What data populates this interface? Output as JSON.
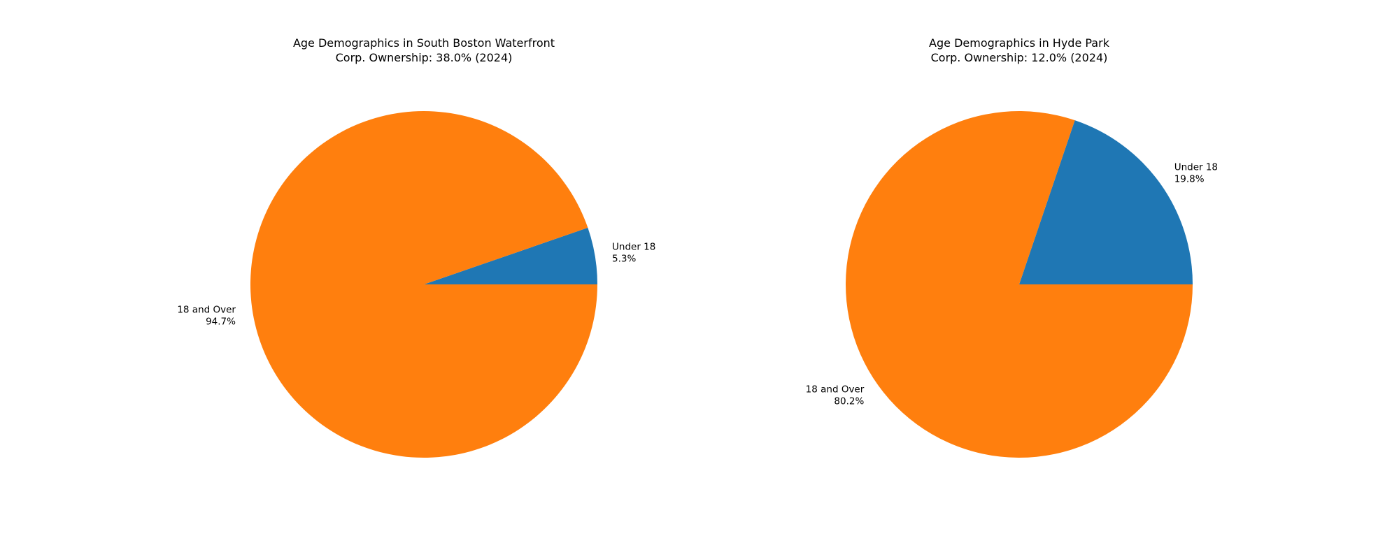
{
  "chart_data": [
    {
      "type": "pie",
      "title_lines": [
        "Age Demographics in South Boston Waterfront",
        "Corp. Ownership: 38.0% (2024)"
      ],
      "labels": [
        "Under 18",
        "18 and Over"
      ],
      "values": [
        5.3,
        94.7
      ],
      "value_labels": [
        "5.3%",
        "94.7%"
      ],
      "colors": [
        "#1f77b4",
        "#ff7f0e"
      ],
      "start_angle_deg": 0,
      "direction": "counterclockwise"
    },
    {
      "type": "pie",
      "title_lines": [
        "Age Demographics in Hyde Park",
        "Corp. Ownership: 12.0% (2024)"
      ],
      "labels": [
        "Under 18",
        "18 and Over"
      ],
      "values": [
        19.8,
        80.2
      ],
      "value_labels": [
        "19.8%",
        "80.2%"
      ],
      "colors": [
        "#1f77b4",
        "#ff7f0e"
      ],
      "start_angle_deg": 0,
      "direction": "counterclockwise"
    }
  ]
}
